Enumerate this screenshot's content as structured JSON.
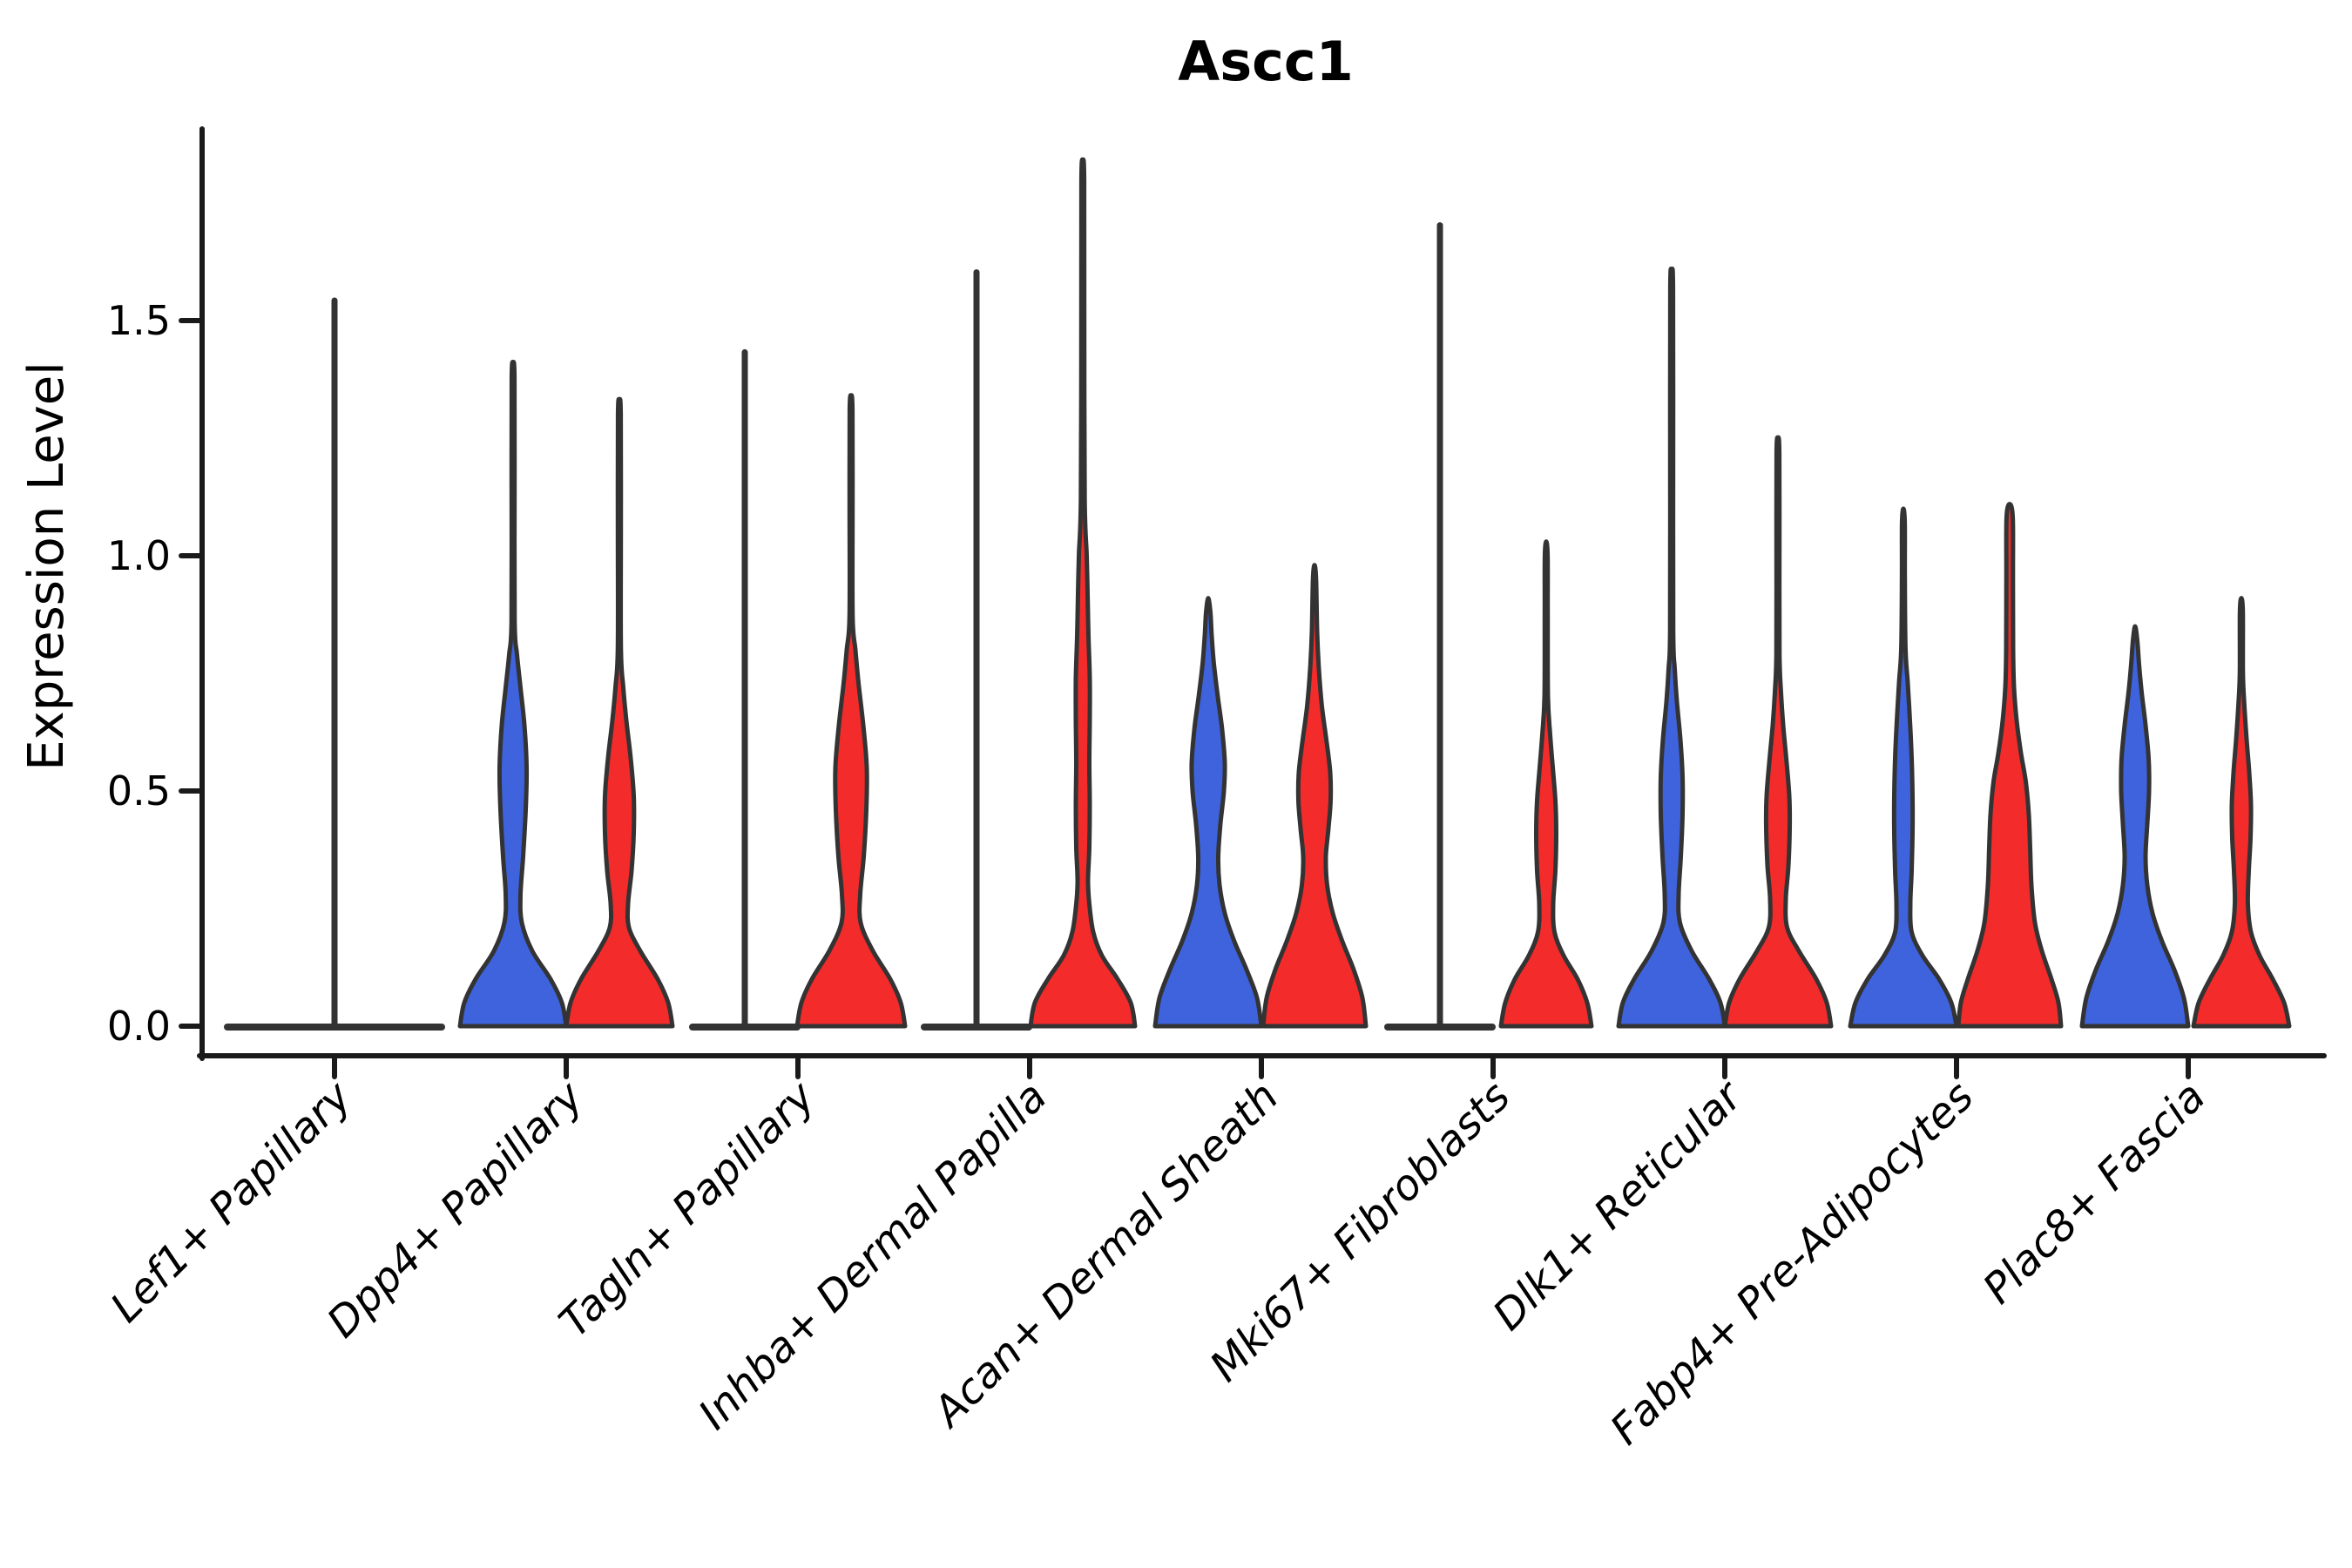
{
  "figure": {
    "background": "#ffffff"
  },
  "chart_data": {
    "type": "violin",
    "title": "Ascc1",
    "ylabel": "Expression Level",
    "xlabel": "",
    "ylim": [
      0,
      1.93
    ],
    "grid": false,
    "legend": "none",
    "x_label_rotation_deg": 45,
    "y_ticks": [
      {
        "value": 0.0,
        "label": "0.0"
      },
      {
        "value": 0.5,
        "label": "0.5"
      },
      {
        "value": 1.0,
        "label": "1.0"
      },
      {
        "value": 1.5,
        "label": "1.5"
      }
    ],
    "categories": [
      "Lef1+ Papillary",
      "Dpp4+ Papillary",
      "Tagln+ Papillary",
      "Inhba+ Dermal Papilla",
      "Acan+ Dermal Sheath",
      "Mki67+ Fibroblasts",
      "Dlk1+ Reticular",
      "Fabp4+ Pre-Adipocytes",
      "Plac8+ Fascia"
    ],
    "colors": {
      "group_left_blue": "#3E63DC",
      "group_right_red": "#F32B2B",
      "outline": "#333333",
      "flat_line": "#333333",
      "axis": "#1a1a1a"
    },
    "series": [
      {
        "name": "left-group-blue",
        "max_expression": [
          1.55,
          1.4,
          1.44,
          1.61,
          0.91,
          1.71,
          1.6,
          1.1,
          0.85
        ]
      },
      {
        "name": "right-group-red",
        "max_expression": [
          null,
          1.32,
          1.33,
          1.83,
          0.98,
          1.02,
          1.25,
          1.11,
          0.91
        ]
      }
    ],
    "violins": [
      {
        "category": 0,
        "side": "single",
        "color": "none",
        "flat": true,
        "lens_hw": 123,
        "tip": 1.55
      },
      {
        "category": 1,
        "side": "left",
        "color": "blue",
        "flat": false,
        "tip": 1.41,
        "profile": [
          [
            0,
            61
          ],
          [
            0.05,
            56
          ],
          [
            0.1,
            43
          ],
          [
            0.16,
            22
          ],
          [
            0.22,
            10
          ],
          [
            0.28,
            8.5
          ],
          [
            0.36,
            11.5
          ],
          [
            0.46,
            14.5
          ],
          [
            0.55,
            15.5
          ],
          [
            0.64,
            13
          ],
          [
            0.72,
            8.5
          ],
          [
            0.79,
            4.5
          ],
          [
            0.86,
            1.8
          ],
          [
            1.15,
            1.7
          ],
          [
            1.38,
            1.6
          ],
          [
            1.41,
            0
          ]
        ]
      },
      {
        "category": 1,
        "side": "right",
        "color": "red",
        "flat": false,
        "tip": 1.33,
        "profile": [
          [
            0,
            61
          ],
          [
            0.05,
            56
          ],
          [
            0.1,
            44
          ],
          [
            0.16,
            24
          ],
          [
            0.21,
            11
          ],
          [
            0.26,
            10
          ],
          [
            0.33,
            14
          ],
          [
            0.41,
            16.5
          ],
          [
            0.49,
            16.5
          ],
          [
            0.57,
            13
          ],
          [
            0.65,
            8
          ],
          [
            0.72,
            4.5
          ],
          [
            0.8,
            1.8
          ],
          [
            1.05,
            1.7
          ],
          [
            1.3,
            1.6
          ],
          [
            1.33,
            0
          ]
        ]
      },
      {
        "category": 2,
        "side": "left",
        "color": "blue",
        "flat": true,
        "lens_hw": 60,
        "tip": 1.44
      },
      {
        "category": 2,
        "side": "right",
        "color": "red",
        "flat": false,
        "tip": 1.34,
        "profile": [
          [
            0,
            62
          ],
          [
            0.05,
            57
          ],
          [
            0.1,
            45
          ],
          [
            0.16,
            25
          ],
          [
            0.22,
            11
          ],
          [
            0.28,
            10.5
          ],
          [
            0.36,
            14.5
          ],
          [
            0.46,
            17.5
          ],
          [
            0.55,
            18
          ],
          [
            0.64,
            14
          ],
          [
            0.73,
            8.5
          ],
          [
            0.8,
            5
          ],
          [
            0.87,
            1.8
          ],
          [
            1.1,
            1.7
          ],
          [
            1.31,
            1.6
          ],
          [
            1.34,
            0
          ]
        ]
      },
      {
        "category": 3,
        "side": "left",
        "color": "blue",
        "flat": true,
        "lens_hw": 60,
        "tip": 1.61
      },
      {
        "category": 3,
        "side": "right",
        "color": "red",
        "flat": false,
        "tip": 1.84,
        "profile": [
          [
            0,
            60
          ],
          [
            0.05,
            55
          ],
          [
            0.1,
            40
          ],
          [
            0.15,
            22
          ],
          [
            0.2,
            12
          ],
          [
            0.26,
            7.5
          ],
          [
            0.31,
            6
          ],
          [
            0.38,
            7.5
          ],
          [
            0.47,
            8
          ],
          [
            0.56,
            7.5
          ],
          [
            0.65,
            8
          ],
          [
            0.74,
            8
          ],
          [
            0.83,
            6.5
          ],
          [
            0.92,
            5.5
          ],
          [
            1.0,
            4.5
          ],
          [
            1.12,
            2.2
          ],
          [
            1.5,
            1.7
          ],
          [
            1.8,
            1.6
          ],
          [
            1.84,
            0
          ]
        ]
      },
      {
        "category": 4,
        "side": "left",
        "color": "blue",
        "flat": false,
        "tip": 0.91,
        "profile": [
          [
            0,
            61
          ],
          [
            0.06,
            56
          ],
          [
            0.12,
            44
          ],
          [
            0.18,
            30
          ],
          [
            0.24,
            19
          ],
          [
            0.3,
            13
          ],
          [
            0.36,
            11.5
          ],
          [
            0.43,
            14
          ],
          [
            0.5,
            18
          ],
          [
            0.56,
            19
          ],
          [
            0.63,
            16
          ],
          [
            0.7,
            11
          ],
          [
            0.77,
            6.5
          ],
          [
            0.83,
            4
          ],
          [
            0.88,
            2.5
          ],
          [
            0.91,
            0
          ]
        ]
      },
      {
        "category": 4,
        "side": "right",
        "color": "red",
        "flat": false,
        "tip": 0.98,
        "profile": [
          [
            0,
            59
          ],
          [
            0.06,
            55
          ],
          [
            0.12,
            45
          ],
          [
            0.18,
            32
          ],
          [
            0.24,
            21
          ],
          [
            0.3,
            14.5
          ],
          [
            0.36,
            13
          ],
          [
            0.42,
            16
          ],
          [
            0.48,
            18.5
          ],
          [
            0.54,
            18
          ],
          [
            0.61,
            13.5
          ],
          [
            0.68,
            8.5
          ],
          [
            0.76,
            5
          ],
          [
            0.84,
            3
          ],
          [
            0.95,
            1.8
          ],
          [
            0.98,
            0
          ]
        ]
      },
      {
        "category": 5,
        "side": "left",
        "color": "blue",
        "flat": true,
        "lens_hw": 60,
        "tip": 1.71
      },
      {
        "category": 5,
        "side": "right",
        "color": "red",
        "flat": false,
        "tip": 1.03,
        "profile": [
          [
            0,
            52
          ],
          [
            0.05,
            47
          ],
          [
            0.1,
            36
          ],
          [
            0.15,
            20
          ],
          [
            0.2,
            9.5
          ],
          [
            0.26,
            8
          ],
          [
            0.33,
            10.5
          ],
          [
            0.41,
            11.5
          ],
          [
            0.48,
            10.5
          ],
          [
            0.55,
            7.5
          ],
          [
            0.62,
            4.5
          ],
          [
            0.7,
            2
          ],
          [
            0.88,
            1.7
          ],
          [
            1.0,
            1.6
          ],
          [
            1.03,
            0
          ]
        ]
      },
      {
        "category": 6,
        "side": "left",
        "color": "blue",
        "flat": false,
        "tip": 1.6,
        "profile": [
          [
            0,
            61
          ],
          [
            0.05,
            56
          ],
          [
            0.1,
            43
          ],
          [
            0.16,
            23
          ],
          [
            0.22,
            9.5
          ],
          [
            0.28,
            8
          ],
          [
            0.36,
            10.5
          ],
          [
            0.45,
            12.5
          ],
          [
            0.53,
            12.5
          ],
          [
            0.61,
            10
          ],
          [
            0.69,
            6
          ],
          [
            0.76,
            3.5
          ],
          [
            0.84,
            1.8
          ],
          [
            1.2,
            1.7
          ],
          [
            1.57,
            1.6
          ],
          [
            1.6,
            0
          ]
        ]
      },
      {
        "category": 6,
        "side": "right",
        "color": "red",
        "flat": false,
        "tip": 1.25,
        "profile": [
          [
            0,
            61
          ],
          [
            0.05,
            56
          ],
          [
            0.1,
            44
          ],
          [
            0.16,
            24
          ],
          [
            0.21,
            10.5
          ],
          [
            0.27,
            9
          ],
          [
            0.34,
            12
          ],
          [
            0.42,
            13.5
          ],
          [
            0.49,
            13
          ],
          [
            0.57,
            9.5
          ],
          [
            0.64,
            6
          ],
          [
            0.71,
            3.5
          ],
          [
            0.79,
            1.8
          ],
          [
            1.0,
            1.7
          ],
          [
            1.22,
            1.6
          ],
          [
            1.25,
            0
          ]
        ]
      },
      {
        "category": 7,
        "side": "left",
        "color": "blue",
        "flat": false,
        "tip": 1.1,
        "profile": [
          [
            0,
            61
          ],
          [
            0.05,
            55
          ],
          [
            0.1,
            41
          ],
          [
            0.15,
            22
          ],
          [
            0.2,
            9.5
          ],
          [
            0.26,
            8
          ],
          [
            0.33,
            9.5
          ],
          [
            0.41,
            10.5
          ],
          [
            0.49,
            10.5
          ],
          [
            0.57,
            9.5
          ],
          [
            0.65,
            7.5
          ],
          [
            0.73,
            5
          ],
          [
            0.8,
            2.5
          ],
          [
            0.95,
            1.7
          ],
          [
            1.07,
            1.6
          ],
          [
            1.1,
            0
          ]
        ]
      },
      {
        "category": 7,
        "side": "right",
        "color": "red",
        "flat": false,
        "tip": 1.11,
        "profile": [
          [
            0,
            59
          ],
          [
            0.05,
            56
          ],
          [
            0.1,
            48
          ],
          [
            0.16,
            37
          ],
          [
            0.22,
            29
          ],
          [
            0.3,
            25
          ],
          [
            0.38,
            23.5
          ],
          [
            0.45,
            22
          ],
          [
            0.52,
            18.5
          ],
          [
            0.58,
            13
          ],
          [
            0.65,
            8
          ],
          [
            0.72,
            5
          ],
          [
            0.8,
            4
          ],
          [
            0.95,
            3.8
          ],
          [
            1.08,
            3.6
          ],
          [
            1.11,
            0
          ]
        ]
      },
      {
        "category": 8,
        "side": "left",
        "color": "blue",
        "flat": false,
        "tip": 0.85,
        "profile": [
          [
            0,
            61
          ],
          [
            0.06,
            56
          ],
          [
            0.12,
            45
          ],
          [
            0.18,
            31
          ],
          [
            0.24,
            20
          ],
          [
            0.3,
            14
          ],
          [
            0.36,
            12
          ],
          [
            0.43,
            14
          ],
          [
            0.5,
            16
          ],
          [
            0.57,
            15.5
          ],
          [
            0.64,
            12
          ],
          [
            0.71,
            7.5
          ],
          [
            0.77,
            4.5
          ],
          [
            0.82,
            2.5
          ],
          [
            0.85,
            0
          ]
        ]
      },
      {
        "category": 8,
        "side": "right",
        "color": "red",
        "flat": false,
        "tip": 0.91,
        "profile": [
          [
            0,
            55
          ],
          [
            0.05,
            49
          ],
          [
            0.1,
            36
          ],
          [
            0.15,
            21
          ],
          [
            0.2,
            11
          ],
          [
            0.26,
            7.5
          ],
          [
            0.33,
            8.5
          ],
          [
            0.4,
            10.5
          ],
          [
            0.47,
            11
          ],
          [
            0.54,
            9
          ],
          [
            0.61,
            6
          ],
          [
            0.68,
            3.5
          ],
          [
            0.75,
            1.8
          ],
          [
            0.88,
            1.7
          ],
          [
            0.91,
            0
          ]
        ]
      }
    ]
  }
}
